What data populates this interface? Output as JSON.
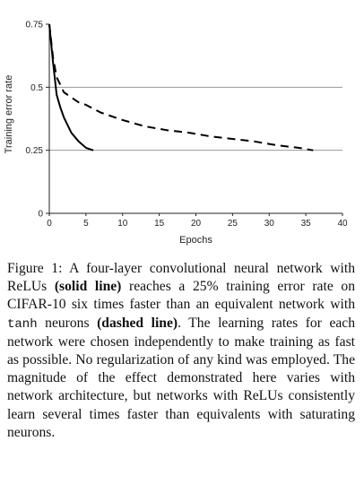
{
  "chart_data": {
    "type": "line",
    "xlabel": "Epochs",
    "ylabel": "Training error rate",
    "xlim": [
      0,
      40
    ],
    "ylim": [
      0,
      0.75
    ],
    "x_ticks": [
      0,
      5,
      10,
      15,
      20,
      25,
      30,
      35,
      40
    ],
    "y_ticks": [
      0,
      0.25,
      0.5,
      0.75
    ],
    "x_tick_labels": [
      "0",
      "5",
      "10",
      "15",
      "20",
      "25",
      "30",
      "35",
      "40"
    ],
    "y_tick_labels": [
      "0",
      "0.25",
      "0.5",
      "0.75"
    ],
    "horizontal_gridlines": [
      0.25,
      0.5
    ],
    "series": [
      {
        "style": "solid",
        "x": [
          0,
          0.5,
          1,
          1.5,
          2,
          3,
          4,
          5,
          6
        ],
        "y": [
          0.75,
          0.6,
          0.47,
          0.42,
          0.38,
          0.32,
          0.285,
          0.26,
          0.25
        ]
      },
      {
        "style": "dashed",
        "x": [
          0,
          0.5,
          1,
          2,
          3,
          4,
          5,
          7,
          10,
          13,
          16,
          19,
          22,
          25,
          28,
          31,
          34,
          36
        ],
        "y": [
          0.75,
          0.62,
          0.54,
          0.48,
          0.46,
          0.44,
          0.43,
          0.4,
          0.37,
          0.345,
          0.33,
          0.32,
          0.305,
          0.295,
          0.285,
          0.27,
          0.26,
          0.25
        ]
      }
    ]
  },
  "caption": {
    "lead": "Figure 1:  A four-layer convolutional neural network with ReLUs ",
    "solid_label": "(solid line)",
    "mid1": " reaches a 25% training error rate on CIFAR-10 six times faster than an equivalent network with ",
    "tanh": "tanh",
    "mid2": " neurons ",
    "dashed_label": "(dashed line)",
    "tail": ". The learning rates for each network were chosen independently to make training as fast as possible.  No regularization of any kind was employed. The magnitude of the effect demonstrated here varies with network architecture, but networks with ReLUs consistently learn several times faster than equivalents with saturating neurons."
  }
}
